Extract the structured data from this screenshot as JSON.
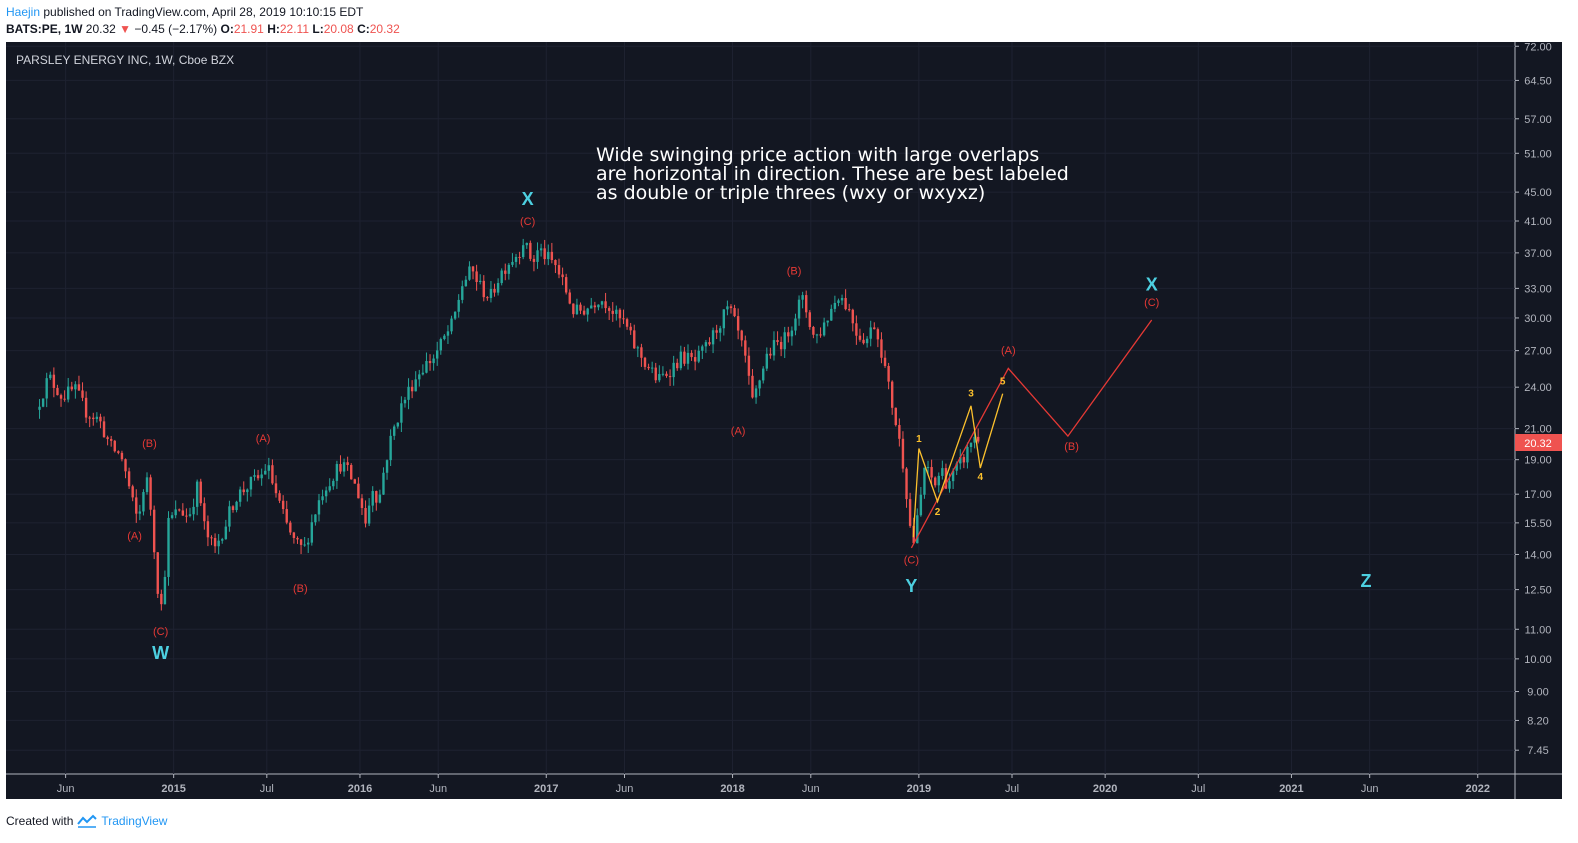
{
  "header": {
    "author": "Haejin",
    "published_text": "published on TradingView.com, April 28, 2019 10:10:15 EDT",
    "symbol": "BATS:PE, 1W",
    "last": "20.32",
    "change": "−0.45 (−2.17%)",
    "o_label": "O:",
    "o_value": "21.91",
    "h_label": "H:",
    "h_value": "22.11",
    "l_label": "L:",
    "l_value": "20.08",
    "c_label": "C:",
    "c_value": "20.32"
  },
  "chart": {
    "legend_title": "PARSLEY ENERGY INC, 1W, Cboe BZX",
    "annotation": [
      "Wide swinging price action with large overlaps",
      "are horizontal in direction. These are best labeled",
      "as double or triple threes (wxy or wxyxz)"
    ],
    "price_label": "20.32"
  },
  "footer": {
    "created_with": "Created with",
    "brand": "TradingView"
  },
  "colors": {
    "background": "#131722",
    "up": "#26a69a",
    "down": "#ef5350",
    "wave_cyan": "#4dd0e1",
    "wave_red": "#e53935",
    "wave_yellow": "#fbc02d",
    "axis_text": "#b2b5be"
  },
  "chart_data": {
    "type": "candlestick",
    "title": "PARSLEY ENERGY INC, 1W, Cboe BZX",
    "y_scale": "log",
    "ylim": [
      6.9,
      73
    ],
    "y_ticks": [
      "72.00",
      "64.50",
      "57.00",
      "51.00",
      "45.00",
      "41.00",
      "37.00",
      "33.00",
      "30.00",
      "27.00",
      "24.00",
      "21.00",
      "19.00",
      "17.00",
      "15.50",
      "14.00",
      "12.50",
      "11.00",
      "10.00",
      "9.00",
      "8.20",
      "7.45"
    ],
    "x_ticks": [
      {
        "label": "Jun",
        "t": 2014.42
      },
      {
        "label": "2015",
        "t": 2015.0
      },
      {
        "label": "Jul",
        "t": 2015.5
      },
      {
        "label": "2016",
        "t": 2016.0
      },
      {
        "label": "Jun",
        "t": 2016.42
      },
      {
        "label": "2017",
        "t": 2017.0
      },
      {
        "label": "Jun",
        "t": 2017.42
      },
      {
        "label": "2018",
        "t": 2018.0
      },
      {
        "label": "Jun",
        "t": 2018.42
      },
      {
        "label": "2019",
        "t": 2019.0
      },
      {
        "label": "Jul",
        "t": 2019.5
      },
      {
        "label": "2020",
        "t": 2020.0
      },
      {
        "label": "Jul",
        "t": 2020.5
      },
      {
        "label": "2021",
        "t": 2021.0
      },
      {
        "label": "Jun",
        "t": 2021.42
      },
      {
        "label": "2022",
        "t": 2022.0
      }
    ],
    "price_path": [
      [
        2014.28,
        23.0
      ],
      [
        2014.33,
        24.8
      ],
      [
        2014.4,
        23.3
      ],
      [
        2014.47,
        23.8
      ],
      [
        2014.53,
        22.2
      ],
      [
        2014.6,
        21.6
      ],
      [
        2014.66,
        19.8
      ],
      [
        2014.72,
        19.2
      ],
      [
        2014.78,
        16.5
      ],
      [
        2014.81,
        15.5
      ],
      [
        2014.85,
        18.2
      ],
      [
        2014.88,
        16.0
      ],
      [
        2014.91,
        12.8
      ],
      [
        2014.94,
        11.6
      ],
      [
        2014.97,
        15.5
      ],
      [
        2015.03,
        16.2
      ],
      [
        2015.08,
        15.8
      ],
      [
        2015.13,
        17.5
      ],
      [
        2015.17,
        15.0
      ],
      [
        2015.22,
        14.2
      ],
      [
        2015.28,
        15.5
      ],
      [
        2015.33,
        16.8
      ],
      [
        2015.4,
        17.5
      ],
      [
        2015.47,
        18.0
      ],
      [
        2015.5,
        18.7
      ],
      [
        2015.55,
        17.0
      ],
      [
        2015.6,
        15.5
      ],
      [
        2015.65,
        14.5
      ],
      [
        2015.7,
        14.2
      ],
      [
        2015.75,
        15.8
      ],
      [
        2015.8,
        17.2
      ],
      [
        2015.85,
        18.0
      ],
      [
        2015.9,
        18.8
      ],
      [
        2015.95,
        18.0
      ],
      [
        2016.0,
        16.8
      ],
      [
        2016.03,
        15.5
      ],
      [
        2016.07,
        17.5
      ],
      [
        2016.1,
        16.5
      ],
      [
        2016.13,
        18.5
      ],
      [
        2016.17,
        20.5
      ],
      [
        2016.22,
        22.5
      ],
      [
        2016.27,
        24.0
      ],
      [
        2016.33,
        25.5
      ],
      [
        2016.4,
        26.5
      ],
      [
        2016.45,
        28.0
      ],
      [
        2016.5,
        29.5
      ],
      [
        2016.55,
        33.5
      ],
      [
        2016.6,
        35.0
      ],
      [
        2016.65,
        33.0
      ],
      [
        2016.7,
        32.0
      ],
      [
        2016.75,
        34.5
      ],
      [
        2016.8,
        36.0
      ],
      [
        2016.85,
        37.0
      ],
      [
        2016.88,
        38.8
      ],
      [
        2016.9,
        37.0
      ],
      [
        2016.93,
        36.0
      ],
      [
        2016.96,
        37.5
      ],
      [
        2017.0,
        36.5
      ],
      [
        2017.05,
        35.5
      ],
      [
        2017.1,
        33.0
      ],
      [
        2017.15,
        30.5
      ],
      [
        2017.22,
        31.0
      ],
      [
        2017.28,
        32.0
      ],
      [
        2017.33,
        31.5
      ],
      [
        2017.38,
        30.0
      ],
      [
        2017.42,
        29.5
      ],
      [
        2017.47,
        27.5
      ],
      [
        2017.53,
        26.0
      ],
      [
        2017.6,
        24.5
      ],
      [
        2017.67,
        25.5
      ],
      [
        2017.73,
        26.5
      ],
      [
        2017.8,
        26.0
      ],
      [
        2017.87,
        27.5
      ],
      [
        2017.93,
        29.5
      ],
      [
        2017.98,
        31.0
      ],
      [
        2018.03,
        28.5
      ],
      [
        2018.08,
        25.5
      ],
      [
        2018.1,
        22.5
      ],
      [
        2018.13,
        23.8
      ],
      [
        2018.18,
        26.5
      ],
      [
        2018.23,
        27.5
      ],
      [
        2018.28,
        28.0
      ],
      [
        2018.33,
        30.0
      ],
      [
        2018.37,
        32.0
      ],
      [
        2018.4,
        30.5
      ],
      [
        2018.44,
        28.0
      ],
      [
        2018.48,
        29.0
      ],
      [
        2018.52,
        30.5
      ],
      [
        2018.57,
        32.5
      ],
      [
        2018.62,
        31.0
      ],
      [
        2018.67,
        28.5
      ],
      [
        2018.72,
        28.0
      ],
      [
        2018.76,
        29.5
      ],
      [
        2018.8,
        27.0
      ],
      [
        2018.83,
        24.5
      ],
      [
        2018.86,
        22.5
      ],
      [
        2018.89,
        20.5
      ],
      [
        2018.92,
        18.5
      ],
      [
        2018.95,
        15.5
      ],
      [
        2018.97,
        14.5
      ],
      [
        2019.0,
        16.0
      ],
      [
        2019.03,
        18.5
      ],
      [
        2019.06,
        18.0
      ],
      [
        2019.09,
        17.5
      ],
      [
        2019.12,
        18.5
      ],
      [
        2019.15,
        17.6
      ],
      [
        2019.18,
        18.0
      ],
      [
        2019.22,
        18.7
      ],
      [
        2019.26,
        19.5
      ],
      [
        2019.29,
        20.5
      ],
      [
        2019.32,
        20.3
      ]
    ],
    "waves": {
      "red_projection": [
        [
          2018.96,
          14.3
        ],
        [
          2019.48,
          25.5
        ],
        [
          2019.8,
          20.5
        ],
        [
          2020.25,
          29.8
        ]
      ],
      "yellow": [
        [
          2018.97,
          14.8
        ],
        [
          2019.0,
          19.7
        ],
        [
          2019.1,
          16.6
        ],
        [
          2019.28,
          22.6
        ],
        [
          2019.33,
          18.5
        ],
        [
          2019.45,
          23.5
        ]
      ]
    },
    "labels": [
      {
        "text": "W",
        "t": 2014.93,
        "p": 10.0,
        "color": "cyan",
        "size": "big"
      },
      {
        "text": "X",
        "t": 2016.9,
        "p": 43.2,
        "color": "cyan",
        "size": "big"
      },
      {
        "text": "Y",
        "t": 2018.96,
        "p": 12.4,
        "color": "cyan",
        "size": "big"
      },
      {
        "text": "X",
        "t": 2020.25,
        "p": 32.8,
        "color": "cyan",
        "size": "big"
      },
      {
        "text": "Z",
        "t": 2021.4,
        "p": 12.6,
        "color": "cyan",
        "size": "big"
      },
      {
        "text": "(A)",
        "t": 2014.79,
        "p": 14.7,
        "color": "red",
        "size": "small"
      },
      {
        "text": "(B)",
        "t": 2014.87,
        "p": 19.8,
        "color": "red",
        "size": "small"
      },
      {
        "text": "(C)",
        "t": 2014.93,
        "p": 10.8,
        "color": "red",
        "size": "small"
      },
      {
        "text": "(A)",
        "t": 2015.48,
        "p": 20.1,
        "color": "red",
        "size": "small"
      },
      {
        "text": "(B)",
        "t": 2015.68,
        "p": 12.4,
        "color": "red",
        "size": "small"
      },
      {
        "text": "(C)",
        "t": 2016.9,
        "p": 40.5,
        "color": "red",
        "size": "small"
      },
      {
        "text": "(A)",
        "t": 2018.03,
        "p": 20.6,
        "color": "red",
        "size": "small"
      },
      {
        "text": "(B)",
        "t": 2018.33,
        "p": 34.5,
        "color": "red",
        "size": "small"
      },
      {
        "text": "(C)",
        "t": 2018.96,
        "p": 13.6,
        "color": "red",
        "size": "small"
      },
      {
        "text": "(A)",
        "t": 2019.48,
        "p": 26.7,
        "color": "red",
        "size": "small"
      },
      {
        "text": "(B)",
        "t": 2019.82,
        "p": 19.6,
        "color": "red",
        "size": "small"
      },
      {
        "text": "(C)",
        "t": 2020.25,
        "p": 31.2,
        "color": "red",
        "size": "small"
      },
      {
        "text": "1",
        "t": 2019.0,
        "p": 20.1,
        "color": "yellow",
        "size": "tiny"
      },
      {
        "text": "2",
        "t": 2019.1,
        "p": 15.9,
        "color": "yellow",
        "size": "tiny"
      },
      {
        "text": "3",
        "t": 2019.28,
        "p": 23.3,
        "color": "yellow",
        "size": "tiny"
      },
      {
        "text": "4",
        "t": 2019.33,
        "p": 17.8,
        "color": "yellow",
        "size": "tiny"
      },
      {
        "text": "5",
        "t": 2019.45,
        "p": 24.2,
        "color": "yellow",
        "size": "tiny"
      }
    ]
  }
}
